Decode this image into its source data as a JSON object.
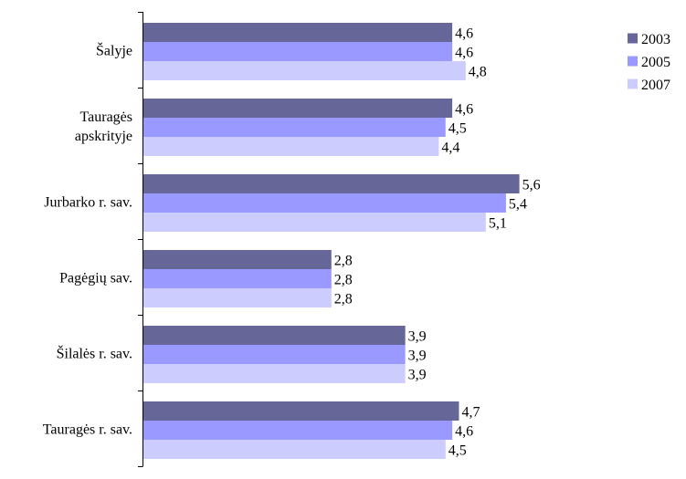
{
  "chart_data": {
    "type": "bar",
    "orientation": "horizontal",
    "categories": [
      [
        "Šalyje"
      ],
      [
        "Tauragės",
        "apskrityje"
      ],
      [
        "Jurbarko r. sav."
      ],
      [
        "Pagėgių sav."
      ],
      [
        "Šilalės r. sav."
      ],
      [
        "Tauragės r. sav."
      ]
    ],
    "series": [
      {
        "name": "2003",
        "color": "#666699",
        "values": [
          4.6,
          4.6,
          5.6,
          2.8,
          3.9,
          4.7
        ],
        "labels": [
          "4,6",
          "4,6",
          "5,6",
          "2,8",
          "3,9",
          "4,7"
        ]
      },
      {
        "name": "2005",
        "color": "#9999ff",
        "values": [
          4.6,
          4.5,
          5.4,
          2.8,
          3.9,
          4.6
        ],
        "labels": [
          "4,6",
          "4,5",
          "5,4",
          "2,8",
          "3,9",
          "4,6"
        ]
      },
      {
        "name": "2007",
        "color": "#ccccff",
        "values": [
          4.8,
          4.4,
          5.1,
          2.8,
          3.9,
          4.5
        ],
        "labels": [
          "4,8",
          "4,4",
          "5,1",
          "2,8",
          "3,9",
          "4,5"
        ]
      }
    ],
    "xlim": [
      0,
      8
    ],
    "grid": false,
    "legend_position": "top-right"
  }
}
